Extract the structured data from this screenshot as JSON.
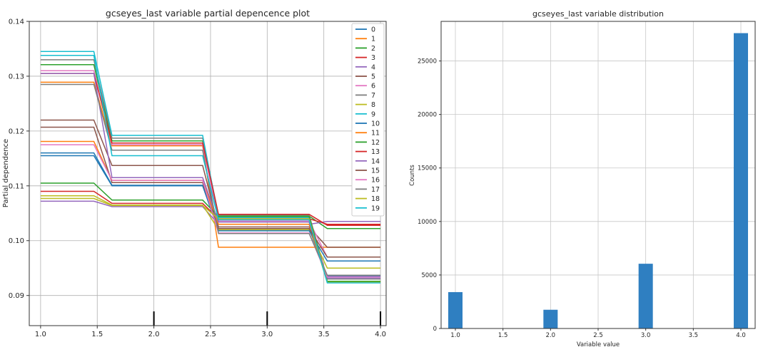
{
  "chart_data": [
    {
      "type": "line",
      "title": "gcseyes_last variable partial depencence plot",
      "xlabel": "",
      "ylabel": "Partial dependence",
      "xlim": [
        0.9,
        4.05
      ],
      "ylim": [
        0.0845,
        0.14
      ],
      "xticks": [
        1.0,
        1.5,
        2.0,
        2.5,
        3.0,
        3.5,
        4.0
      ],
      "xtick_labels": [
        "1.0",
        "1.5",
        "2.0",
        "2.5",
        "3.0",
        "3.5",
        "4.0"
      ],
      "yticks": [
        0.09,
        0.1,
        0.11,
        0.12,
        0.13,
        0.14
      ],
      "ytick_labels": [
        "0.09",
        "0.10",
        "0.11",
        "0.12",
        "0.13",
        "0.14"
      ],
      "x": [
        1.0,
        1.47,
        1.63,
        2.43,
        2.57,
        3.37,
        3.53,
        4.0
      ],
      "rug": [
        2.0,
        3.0,
        4.0
      ],
      "legend": "upper-right",
      "grid": true,
      "series": [
        {
          "name": "0",
          "color": "#1f77b4",
          "levels": [
            0.116,
            0.1101,
            0.1022,
            0.0935
          ]
        },
        {
          "name": "1",
          "color": "#ff7f0e",
          "levels": [
            0.1289,
            0.1173,
            0.0988,
            0.0988
          ]
        },
        {
          "name": "2",
          "color": "#2ca02c",
          "levels": [
            0.1321,
            0.1182,
            0.1045,
            0.1022
          ]
        },
        {
          "name": "3",
          "color": "#d62728",
          "levels": [
            0.109,
            0.1068,
            0.104,
            0.103
          ]
        },
        {
          "name": "4",
          "color": "#9467bd",
          "levels": [
            0.1072,
            0.1062,
            0.103,
            0.1035
          ]
        },
        {
          "name": "5",
          "color": "#8c564b",
          "levels": [
            0.122,
            0.1137,
            0.1025,
            0.0988
          ]
        },
        {
          "name": "6",
          "color": "#e377c2",
          "levels": [
            0.131,
            0.1175,
            0.1036,
            0.097
          ]
        },
        {
          "name": "7",
          "color": "#7f7f7f",
          "levels": [
            0.133,
            0.1187,
            0.1047,
            0.093
          ]
        },
        {
          "name": "8",
          "color": "#bcbd22",
          "levels": [
            0.1082,
            0.1065,
            0.102,
            0.095
          ]
        },
        {
          "name": "9",
          "color": "#17becf",
          "levels": [
            0.1345,
            0.1192,
            0.1042,
            0.0925
          ]
        },
        {
          "name": "10",
          "color": "#1f77b4",
          "levels": [
            0.1155,
            0.11,
            0.1018,
            0.0963
          ]
        },
        {
          "name": "11",
          "color": "#ff7f0e",
          "levels": [
            0.1181,
            0.111,
            0.103,
            0.0925
          ]
        },
        {
          "name": "12",
          "color": "#2ca02c",
          "levels": [
            0.1105,
            0.1074,
            0.1044,
            0.0926
          ]
        },
        {
          "name": "13",
          "color": "#d62728",
          "levels": [
            0.1305,
            0.1178,
            0.1048,
            0.1028
          ]
        },
        {
          "name": "14",
          "color": "#9467bd",
          "levels": [
            0.1305,
            0.1115,
            0.1034,
            0.0932
          ]
        },
        {
          "name": "15",
          "color": "#8c564b",
          "levels": [
            0.1207,
            0.1106,
            0.1022,
            0.097
          ]
        },
        {
          "name": "16",
          "color": "#e377c2",
          "levels": [
            0.1175,
            0.111,
            0.1014,
            0.0934
          ]
        },
        {
          "name": "17",
          "color": "#7f7f7f",
          "levels": [
            0.1285,
            0.1165,
            0.1013,
            0.0937
          ]
        },
        {
          "name": "18",
          "color": "#bcbd22",
          "levels": [
            0.1077,
            0.1064,
            0.104,
            0.0924
          ]
        },
        {
          "name": "19",
          "color": "#17becf",
          "levels": [
            0.1338,
            0.1155,
            0.1038,
            0.0923
          ]
        }
      ]
    },
    {
      "type": "bar",
      "title": "gcseyes_last variable distribution",
      "xlabel": "Variable value",
      "ylabel": "Counts",
      "xlim": [
        0.85,
        4.15
      ],
      "ylim": [
        0,
        28700
      ],
      "xticks": [
        1.0,
        1.5,
        2.0,
        2.5,
        3.0,
        3.5,
        4.0
      ],
      "xtick_labels": [
        "1.0",
        "1.5",
        "2.0",
        "2.5",
        "3.0",
        "3.5",
        "4.0"
      ],
      "yticks": [
        0,
        5000,
        10000,
        15000,
        20000,
        25000
      ],
      "ytick_labels": [
        "0",
        "5000",
        "10000",
        "15000",
        "20000",
        "25000"
      ],
      "bar_width": 0.15,
      "bars": [
        {
          "x": 1.0,
          "value": 3400
        },
        {
          "x": 2.0,
          "value": 1750
        },
        {
          "x": 3.0,
          "value": 6050
        },
        {
          "x": 4.0,
          "value": 27600
        }
      ],
      "bar_color": "#2f7fc1",
      "grid": true
    }
  ]
}
